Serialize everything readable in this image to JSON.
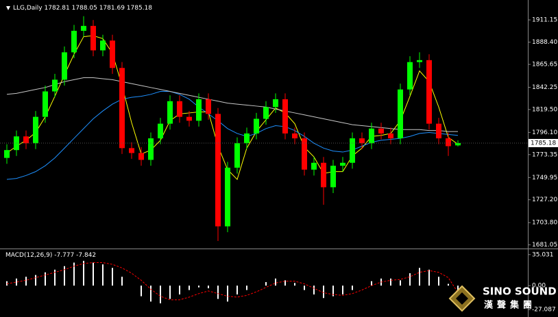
{
  "chart_data": [
    {
      "type": "candlestick",
      "title": "LLG,Daily",
      "header_values": [
        1782.81,
        1788.05,
        1781.69,
        1785.18
      ],
      "up_color": "#00ff00",
      "down_color": "#ff0000",
      "open": [
        1770,
        1778,
        1792,
        1785,
        1812,
        1838,
        1850,
        1878,
        1900,
        1905,
        1880,
        1890,
        1862,
        1780,
        1775,
        1768,
        1790,
        1805,
        1828,
        1812,
        1808,
        1830,
        1815,
        1700,
        1760,
        1785,
        1795,
        1810,
        1822,
        1830,
        1795,
        1790,
        1758,
        1765,
        1740,
        1762,
        1765,
        1790,
        1785,
        1800,
        1795,
        1790,
        1840,
        1868,
        1870,
        1805,
        1790,
        1782.81
      ],
      "high": [
        1784,
        1798,
        1798,
        1818,
        1844,
        1856,
        1884,
        1906,
        1915,
        1911,
        1896,
        1896,
        1868,
        1786,
        1781,
        1796,
        1811,
        1834,
        1834,
        1818,
        1836,
        1836,
        1821,
        1766,
        1791,
        1801,
        1816,
        1828,
        1836,
        1836,
        1801,
        1796,
        1771,
        1771,
        1768,
        1771,
        1796,
        1796,
        1806,
        1806,
        1801,
        1846,
        1874,
        1878,
        1876,
        1811,
        1796,
        1788.05
      ],
      "low": [
        1764,
        1772,
        1779,
        1779,
        1806,
        1832,
        1844,
        1872,
        1894,
        1874,
        1874,
        1856,
        1774,
        1769,
        1762,
        1762,
        1784,
        1799,
        1806,
        1802,
        1802,
        1809,
        1685,
        1694,
        1754,
        1779,
        1789,
        1804,
        1816,
        1789,
        1784,
        1752,
        1752,
        1722,
        1734,
        1756,
        1759,
        1779,
        1779,
        1789,
        1784,
        1784,
        1834,
        1862,
        1799,
        1784,
        1772,
        1781.69
      ],
      "close": [
        1778,
        1792,
        1785,
        1812,
        1838,
        1850,
        1878,
        1900,
        1905,
        1880,
        1890,
        1862,
        1780,
        1775,
        1768,
        1790,
        1805,
        1828,
        1812,
        1808,
        1830,
        1815,
        1700,
        1760,
        1785,
        1795,
        1810,
        1822,
        1830,
        1795,
        1790,
        1758,
        1765,
        1740,
        1762,
        1765,
        1790,
        1785,
        1800,
        1795,
        1790,
        1840,
        1868,
        1870,
        1805,
        1790,
        1782,
        1785.18
      ],
      "series": [
        {
          "color": "#ffff00",
          "values": [
            1775,
            1782,
            1788,
            1796,
            1812,
            1833,
            1855,
            1876,
            1894,
            1895,
            1892,
            1877,
            1844,
            1806,
            1774,
            1778,
            1788,
            1808,
            1815,
            1816,
            1817,
            1817,
            1782,
            1758,
            1748,
            1780,
            1797,
            1809,
            1821,
            1816,
            1805,
            1781,
            1771,
            1754,
            1756,
            1756,
            1772,
            1780,
            1792,
            1793,
            1795,
            1808,
            1833,
            1859,
            1848,
            1822,
            1791,
            1784
          ]
        },
        {
          "color": "#1e90ff",
          "values": [
            1748,
            1749,
            1752,
            1756,
            1762,
            1770,
            1780,
            1790,
            1800,
            1810,
            1818,
            1825,
            1830,
            1832,
            1833,
            1835,
            1838,
            1838,
            1835,
            1830,
            1822,
            1815,
            1808,
            1800,
            1795,
            1792,
            1795,
            1800,
            1803,
            1802,
            1798,
            1792,
            1785,
            1780,
            1777,
            1776,
            1778,
            1782,
            1786,
            1788,
            1789,
            1790,
            1792,
            1795,
            1796,
            1795,
            1794,
            1793
          ]
        },
        {
          "color": "#c8c8c8",
          "values": [
            1835,
            1836,
            1838,
            1840,
            1842,
            1845,
            1848,
            1850,
            1852,
            1852,
            1851,
            1850,
            1848,
            1846,
            1844,
            1842,
            1840,
            1838,
            1836,
            1834,
            1832,
            1830,
            1828,
            1826,
            1825,
            1824,
            1823,
            1822,
            1820,
            1818,
            1816,
            1814,
            1812,
            1810,
            1808,
            1806,
            1804,
            1803,
            1802,
            1801,
            1800,
            1799,
            1799,
            1799,
            1798,
            1798,
            1797,
            1797
          ]
        }
      ],
      "ylim": [
        1678,
        1928
      ],
      "yticks": [
        1911.15,
        {
          "value": 1888.4,
          "label": "1888.40"
        },
        1865.65,
        1842.25,
        {
          "value": 1819.5,
          "label": "1819.50"
        },
        {
          "value": 1796.1,
          "label": "1796.10"
        },
        1773.35,
        1749.95,
        {
          "value": 1727.2,
          "label": "1727.20"
        },
        {
          "value": 1703.8,
          "label": "1703.80"
        },
        1681.05
      ]
    },
    {
      "type": "macd",
      "title": "MACD(12,26,9)",
      "bar_color": "#ffffff",
      "signal_color": "#ff0000",
      "values": [
        5,
        8,
        10,
        12,
        15,
        18,
        22,
        26,
        28,
        26,
        24,
        20,
        10,
        0,
        -12,
        -18,
        -20,
        -15,
        -10,
        -5,
        -2,
        -3,
        -15,
        -18,
        -10,
        -5,
        0,
        4,
        8,
        6,
        3,
        -5,
        -10,
        -14,
        -12,
        -10,
        -5,
        0,
        5,
        8,
        8,
        6,
        14,
        20,
        18,
        10,
        2,
        -7.777
      ],
      "signal": [
        2,
        4,
        6,
        9,
        12,
        15,
        18,
        22,
        25,
        26,
        26,
        24,
        20,
        14,
        6,
        -4,
        -12,
        -16,
        -16,
        -13,
        -9,
        -6,
        -9,
        -12,
        -13,
        -11,
        -7,
        -2,
        3,
        5,
        5,
        2,
        -3,
        -8,
        -10,
        -11,
        -9,
        -5,
        0,
        4,
        6,
        7,
        10,
        15,
        17,
        15,
        9,
        -7.842
      ],
      "ylim": [
        -34.66,
        40.33
      ],
      "yticks": [
        35.031,
        {
          "value": 0,
          "label": "0.00"
        },
        -27.087
      ]
    }
  ],
  "watermark": {
    "brand": "SINO SOUND",
    "chinese": "漢聲集團"
  }
}
